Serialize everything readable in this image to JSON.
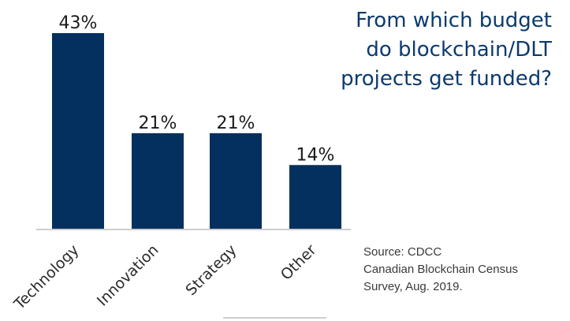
{
  "title_lines": [
    "From which budget",
    "do blockchain/DLT",
    "projects get funded?"
  ],
  "source_lines": [
    "Source: CDCC",
    "Canadian Blockchain Census",
    "Survey, Aug. 2019."
  ],
  "colors": {
    "bar": "#03305e",
    "title": "#0b3a6e",
    "text": "#1a1a1a",
    "axis": "#bdbdbd",
    "tick_label": "#2b2b2b"
  },
  "chart_data": {
    "type": "bar",
    "title": "From which budget do blockchain/DLT projects get funded?",
    "categories": [
      "Technology",
      "Innovation",
      "Strategy",
      "Other"
    ],
    "values": [
      43,
      21,
      21,
      14
    ],
    "value_labels": [
      "43%",
      "21%",
      "21%",
      "14%"
    ],
    "xlabel": "",
    "ylabel": "",
    "ylim": [
      0,
      43
    ],
    "unit": "%",
    "grid": false,
    "legend": "none"
  }
}
